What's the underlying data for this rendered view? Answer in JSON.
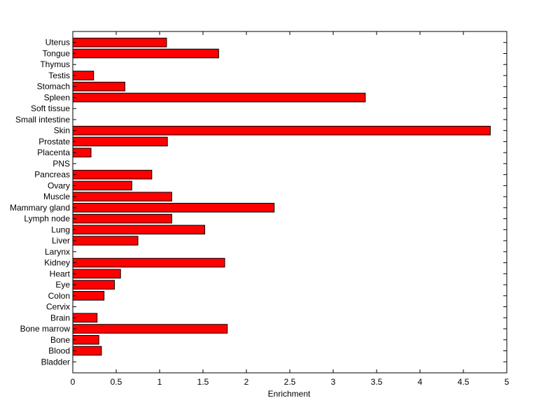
{
  "chart_data": {
    "type": "bar",
    "orientation": "horizontal",
    "title": "",
    "xlabel": "Enrichment",
    "ylabel": "",
    "xlim": [
      0,
      5
    ],
    "xticks": [
      "0",
      "0.5",
      "1",
      "1.5",
      "2",
      "2.5",
      "3",
      "3.5",
      "4",
      "4.5",
      "5"
    ],
    "grid": false,
    "legend": "none",
    "bar_color": "#ff0000",
    "bar_edge_color": "#000000",
    "categories": [
      "Bladder",
      "Blood",
      "Bone",
      "Bone marrow",
      "Brain",
      "Cervix",
      "Colon",
      "Eye",
      "Heart",
      "Kidney",
      "Larynx",
      "Liver",
      "Lung",
      "Lymph node",
      "Mammary gland",
      "Muscle",
      "Ovary",
      "Pancreas",
      "PNS",
      "Placenta",
      "Prostate",
      "Skin",
      "Small intestine",
      "Soft tissue",
      "Spleen",
      "Stomach",
      "Testis",
      "Thymus",
      "Tongue",
      "Uterus"
    ],
    "values": [
      0,
      0.33,
      0.3,
      1.78,
      0.28,
      0,
      0.36,
      0.48,
      0.55,
      1.75,
      0,
      0.75,
      1.52,
      1.14,
      2.32,
      1.14,
      0.68,
      0.91,
      0,
      0.21,
      1.09,
      4.81,
      0,
      0,
      3.37,
      0.6,
      0.24,
      0,
      1.68,
      1.08
    ]
  }
}
